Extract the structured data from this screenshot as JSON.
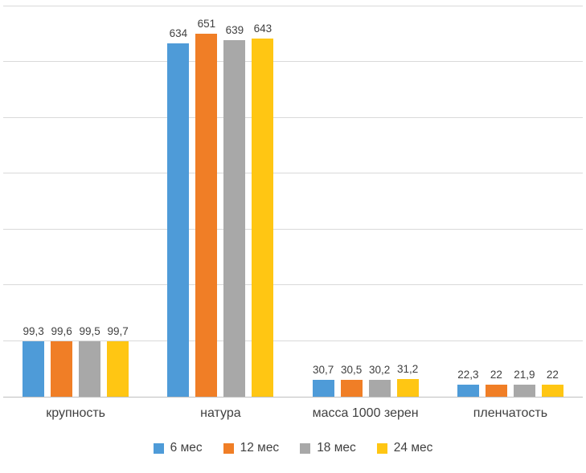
{
  "chart_data": {
    "type": "bar",
    "title": "",
    "xlabel": "",
    "ylabel": "",
    "categories": [
      "крупность",
      "натура",
      "масса 1000 зерен",
      "пленчатость"
    ],
    "series": [
      {
        "name": "6 мес",
        "color": "#4E9BD8",
        "values": [
          99.3,
          634,
          30.7,
          22.3
        ]
      },
      {
        "name": "12 мес",
        "color": "#F07E26",
        "values": [
          99.6,
          651,
          30.5,
          22
        ]
      },
      {
        "name": "18 мес",
        "color": "#A8A8A8",
        "values": [
          99.5,
          639,
          30.2,
          21.9
        ]
      },
      {
        "name": "24 мес",
        "color": "#FFC613",
        "values": [
          99.7,
          643,
          31.2,
          22
        ]
      }
    ],
    "data_labels": true,
    "decimal_separator": ",",
    "ylim": [
      0,
      700
    ],
    "grid_step": 100,
    "grid": true,
    "legend_position": "bottom",
    "grid_color": "#D9D9D9",
    "axis_color": "#BFBFBF",
    "text_color": "#404040",
    "background_color": "#FFFFFF"
  }
}
